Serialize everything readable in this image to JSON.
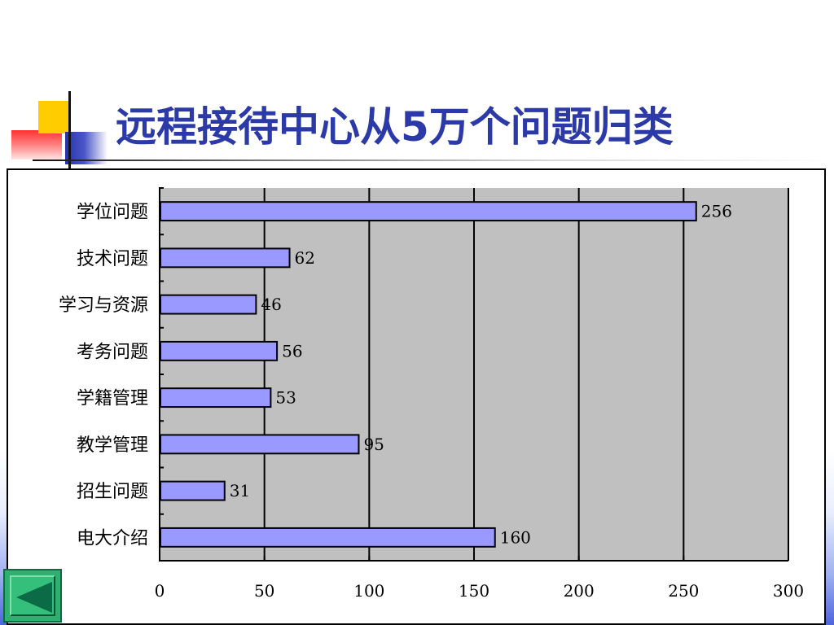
{
  "title": "远程接待中心从5万个问题归类",
  "colors": {
    "title": "#2b3aa6",
    "bar_fill": "#9999ff",
    "plot_bg": "#c0c0c0",
    "nav_button": "#2fb070"
  },
  "icons": {
    "nav_back": "triangle-left-icon"
  },
  "chart_data": {
    "type": "bar",
    "orientation": "horizontal",
    "categories": [
      "学位问题",
      "技术问题",
      "学习与资源",
      "考务问题",
      "学籍管理",
      "教学管理",
      "招生问题",
      "电大介绍"
    ],
    "values": [
      256,
      62,
      46,
      56,
      53,
      95,
      31,
      160
    ],
    "xlim": [
      0,
      300
    ],
    "xticks": [
      "0",
      "50",
      "100",
      "150",
      "200",
      "250",
      "300"
    ],
    "xticks_values": [
      0,
      50,
      100,
      150,
      200,
      250,
      300
    ],
    "grid": true,
    "legend": "none",
    "data_labels": true
  }
}
